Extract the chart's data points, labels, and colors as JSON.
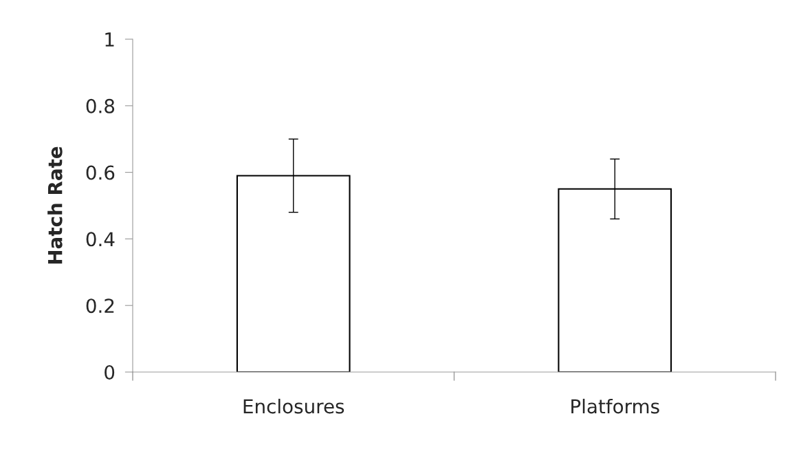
{
  "chart_data": {
    "type": "bar",
    "ylabel": "Hatch Rate",
    "categories": [
      "Enclosures",
      "Platforms"
    ],
    "values": [
      0.59,
      0.55
    ],
    "errors": [
      0.11,
      0.09
    ],
    "color": "#ffffff",
    "ylim": [
      0,
      1
    ],
    "yticks": [
      0,
      0.2,
      0.4,
      0.6,
      0.8,
      1
    ],
    "grid": false
  }
}
